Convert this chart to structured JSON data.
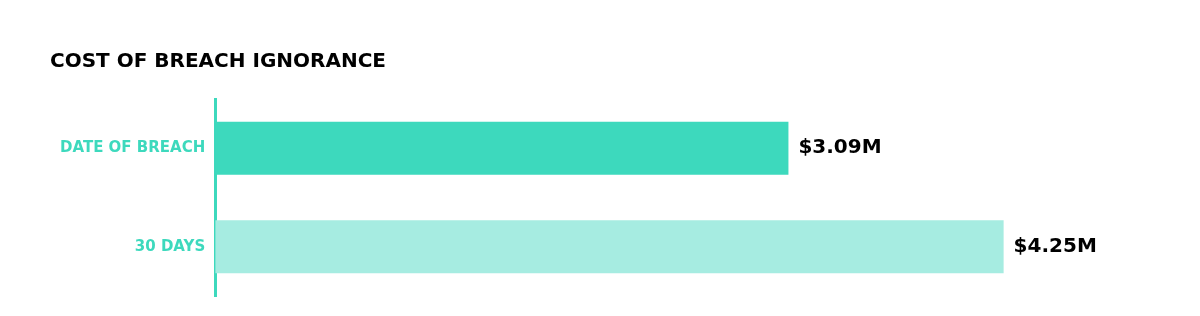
{
  "chart_data": {
    "type": "bar",
    "orientation": "horizontal",
    "title": "COST OF BREACH IGNORANCE",
    "categories": [
      "DATE OF BREACH",
      "30 DAYS"
    ],
    "values": [
      3.09,
      4.25
    ],
    "colors": [
      "#3dd9bd",
      "#a6ece1"
    ],
    "value_labels": [
      "$3.09M",
      "$4.25M"
    ],
    "grid": false,
    "legend": false,
    "tick_labels": "y"
  }
}
